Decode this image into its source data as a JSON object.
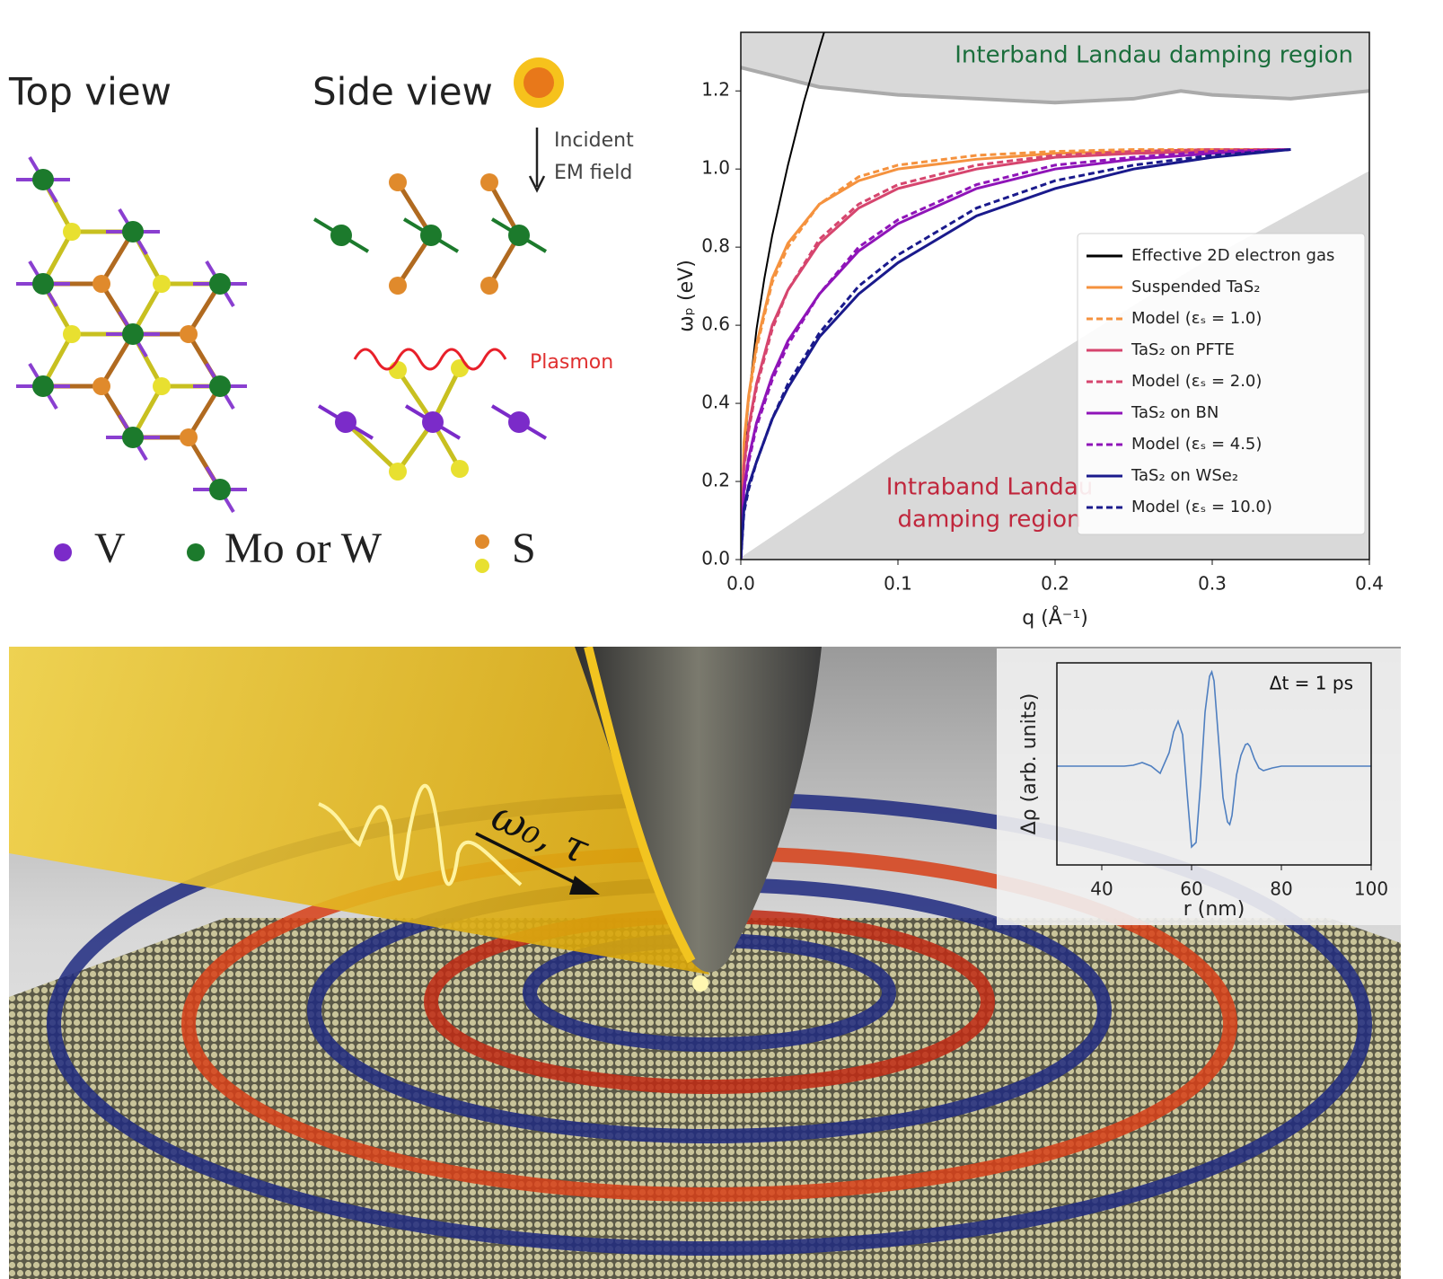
{
  "diagram": {
    "top_view": "Top view",
    "side_view": "Side view",
    "incident": "Incident",
    "em_field": "EM field",
    "plasmon": "Plasmon",
    "legend": [
      "V",
      "Mo or W",
      "S"
    ]
  },
  "illustration": {
    "label": "ω₀, τ"
  },
  "chart_data": [
    {
      "type": "line",
      "xlabel": "q (Å⁻¹)",
      "ylabel": "ωₚ (eV)",
      "xlim": [
        0,
        0.4
      ],
      "xticks": [
        {
          "value": 0,
          "label": "0.0"
        },
        0.1,
        0.2,
        0.3,
        0.4
      ],
      "ylim": [
        0,
        1.35
      ],
      "yticks": [
        {
          "value": 0,
          "label": "0.0"
        },
        0.2,
        0.4,
        0.6,
        0.8,
        {
          "value": 1,
          "label": "1.0"
        },
        1.2
      ],
      "legend": "lower right",
      "annotations": [
        {
          "text": "Interband Landau damping region",
          "color": "#1b6e3c"
        },
        {
          "lines": [
            "Intraband Landau",
            "damping region"
          ],
          "color": "#c0263c"
        }
      ],
      "shaded": [
        {
          "x": [
            0,
            0.05,
            0.1,
            0.15,
            0.2,
            0.25,
            0.28,
            0.3,
            0.35,
            0.4
          ],
          "y": [
            1.26,
            1.21,
            1.19,
            1.18,
            1.17,
            1.18,
            1.2,
            1.19,
            1.18,
            1.2
          ],
          "side": "above",
          "color": "#d9d9d9",
          "stroke": "#aaaaaa"
        },
        {
          "x": [
            0,
            0.1,
            0.2,
            0.3,
            0.4
          ],
          "y": [
            0,
            0.27,
            0.52,
            0.77,
            0.99
          ],
          "side": "below",
          "color": "#d9d9d9",
          "stroke": "#d9d9d9"
        }
      ],
      "series": [
        {
          "name": "Effective 2D electron gas",
          "color": "#000000",
          "style": "solid",
          "x": [
            0,
            0.0025,
            0.005,
            0.01,
            0.015,
            0.02,
            0.03,
            0.04,
            0.05,
            0.053
          ],
          "values": [
            0,
            0.29,
            0.41,
            0.59,
            0.72,
            0.83,
            1.01,
            1.17,
            1.31,
            1.35
          ]
        },
        {
          "name": "Suspended TaS₂",
          "color": "#f5923e",
          "style": "solid",
          "x": [
            0,
            0.002,
            0.005,
            0.01,
            0.02,
            0.03,
            0.05,
            0.075,
            0.1,
            0.15,
            0.2,
            0.25,
            0.3,
            0.35
          ],
          "values": [
            0,
            0.3,
            0.42,
            0.55,
            0.72,
            0.81,
            0.91,
            0.97,
            1.0,
            1.025,
            1.04,
            1.045,
            1.05,
            1.05
          ]
        },
        {
          "name": "Model (εₛ = 1.0)",
          "color": "#f5923e",
          "style": "dashed",
          "x": [
            0,
            0.002,
            0.005,
            0.01,
            0.02,
            0.03,
            0.05,
            0.075,
            0.1,
            0.15,
            0.2,
            0.25,
            0.3,
            0.35
          ],
          "values": [
            0,
            0.29,
            0.41,
            0.54,
            0.71,
            0.8,
            0.91,
            0.98,
            1.01,
            1.035,
            1.045,
            1.05,
            1.05,
            1.05
          ]
        },
        {
          "name": "TaS₂ on PFTE",
          "color": "#d6456e",
          "style": "solid",
          "x": [
            0,
            0.002,
            0.005,
            0.01,
            0.02,
            0.03,
            0.05,
            0.075,
            0.1,
            0.15,
            0.2,
            0.25,
            0.3,
            0.35
          ],
          "values": [
            0,
            0.24,
            0.34,
            0.45,
            0.6,
            0.69,
            0.81,
            0.9,
            0.95,
            1.0,
            1.03,
            1.04,
            1.045,
            1.05
          ]
        },
        {
          "name": "Model (εₛ = 2.0)",
          "color": "#d6456e",
          "style": "dashed",
          "x": [
            0,
            0.002,
            0.005,
            0.01,
            0.02,
            0.03,
            0.05,
            0.075,
            0.1,
            0.15,
            0.2,
            0.25,
            0.3,
            0.35
          ],
          "values": [
            0,
            0.23,
            0.33,
            0.44,
            0.59,
            0.69,
            0.82,
            0.91,
            0.96,
            1.01,
            1.035,
            1.045,
            1.05,
            1.05
          ]
        },
        {
          "name": "TaS₂ on BN",
          "color": "#8f14b8",
          "style": "solid",
          "x": [
            0,
            0.002,
            0.005,
            0.01,
            0.02,
            0.03,
            0.05,
            0.075,
            0.1,
            0.15,
            0.2,
            0.25,
            0.3,
            0.35
          ],
          "values": [
            0,
            0.18,
            0.26,
            0.35,
            0.47,
            0.56,
            0.68,
            0.79,
            0.86,
            0.95,
            1.0,
            1.025,
            1.04,
            1.05
          ]
        },
        {
          "name": "Model (εₛ = 4.5)",
          "color": "#8f14b8",
          "style": "dashed",
          "x": [
            0,
            0.002,
            0.005,
            0.01,
            0.02,
            0.03,
            0.05,
            0.075,
            0.1,
            0.15,
            0.2,
            0.25,
            0.3,
            0.35
          ],
          "values": [
            0,
            0.17,
            0.25,
            0.34,
            0.46,
            0.55,
            0.68,
            0.8,
            0.87,
            0.96,
            1.01,
            1.03,
            1.045,
            1.05
          ]
        },
        {
          "name": "TaS₂ on WSe₂",
          "color": "#1a1a8c",
          "style": "solid",
          "x": [
            0,
            0.002,
            0.005,
            0.01,
            0.02,
            0.03,
            0.05,
            0.075,
            0.1,
            0.15,
            0.2,
            0.25,
            0.3,
            0.35
          ],
          "values": [
            0,
            0.13,
            0.19,
            0.25,
            0.36,
            0.44,
            0.57,
            0.68,
            0.76,
            0.88,
            0.95,
            1.0,
            1.03,
            1.05
          ]
        },
        {
          "name": "Model (εₛ = 10.0)",
          "color": "#1a1a8c",
          "style": "dashed",
          "x": [
            0,
            0.002,
            0.005,
            0.01,
            0.02,
            0.03,
            0.05,
            0.075,
            0.1,
            0.15,
            0.2,
            0.25,
            0.3,
            0.35
          ],
          "values": [
            0,
            0.12,
            0.18,
            0.25,
            0.36,
            0.45,
            0.58,
            0.7,
            0.78,
            0.9,
            0.97,
            1.01,
            1.035,
            1.05
          ]
        }
      ]
    },
    {
      "type": "line",
      "xlabel": "r (nm)",
      "ylabel": "Δρ (arb. units)",
      "annotation": "Δt = 1 ps",
      "xlim": [
        30,
        100
      ],
      "xticks": [
        40,
        60,
        80,
        100
      ],
      "ylim": [
        -1.1,
        1.15
      ],
      "color": "#4f7fc0",
      "x": [
        30,
        40,
        45,
        47,
        49,
        51,
        53,
        55,
        56,
        57,
        58,
        59,
        60,
        61,
        62,
        63,
        64,
        64.5,
        65,
        66,
        67,
        68,
        68.5,
        69,
        70,
        71,
        72,
        72.5,
        73,
        74,
        75,
        76,
        78,
        80,
        85,
        90,
        100
      ],
      "values": [
        0,
        0,
        0,
        0.01,
        0.04,
        0,
        -0.08,
        0.15,
        0.38,
        0.5,
        0.35,
        -0.3,
        -0.9,
        -0.85,
        -0.2,
        0.6,
        1.0,
        1.05,
        0.95,
        0.3,
        -0.35,
        -0.62,
        -0.65,
        -0.55,
        -0.1,
        0.12,
        0.24,
        0.25,
        0.22,
        0.08,
        -0.02,
        -0.05,
        -0.02,
        0,
        0,
        0,
        0
      ]
    }
  ]
}
